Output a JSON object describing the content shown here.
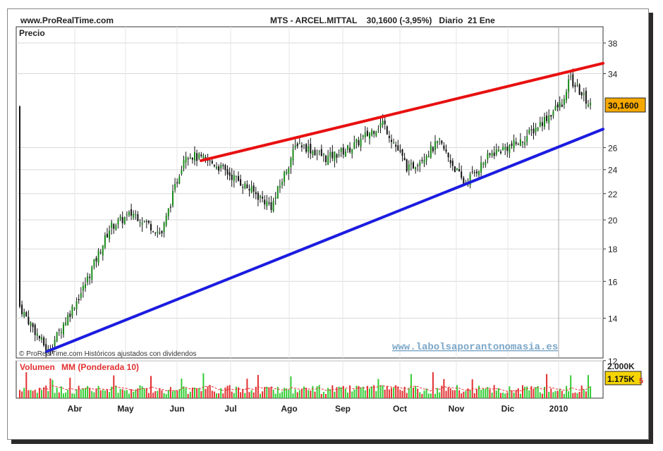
{
  "header": {
    "site": "www.ProRealTime.com",
    "ticker": "MTS - ARCEL.MITTAL",
    "price_change": "30,1600 (-3,95%)",
    "period": "Diario",
    "date": "21 Ene"
  },
  "price_panel": {
    "label": "Precio",
    "last_price": "30,1600",
    "credit": "© ProRealTime.com Históricos ajustados con dividendos",
    "watermark": "www.labolsaporantonomasia.es"
  },
  "volume_panel": {
    "label_volume": "Volumen",
    "label_ma": "MM (Ponderada 10)",
    "tick_top": "2.000K",
    "last_value": "1.175K",
    "last_value_suffix": "5"
  },
  "colors": {
    "up_candle": "#1a8a1a",
    "down_candle": "#111111",
    "resistance_line": "#e81010",
    "support_line": "#1c1ce0",
    "volume_up": "#33cc33",
    "volume_down": "#e23030",
    "price_badge": "#f5a800"
  },
  "chart_data": {
    "type": "candlestick",
    "y_scale": "log",
    "ylim": [
      12,
      40
    ],
    "y_ticks": [
      12,
      14,
      16,
      18,
      20,
      22,
      24,
      26,
      34,
      38
    ],
    "y_tick_labels": [
      "12",
      "14",
      "16",
      "18",
      "20",
      "22",
      "24",
      "26",
      "34",
      "38"
    ],
    "x_tick_labels": [
      "Abr",
      "May",
      "Jun",
      "Jul",
      "Ago",
      "Sep",
      "Oct",
      "Nov",
      "Dic",
      "2010"
    ],
    "grid": true,
    "approx_close_path": [
      {
        "month": "Mar",
        "close": 14.6
      },
      {
        "month": "Mar",
        "close": 12.4
      },
      {
        "month": "Abr",
        "close": 15.5
      },
      {
        "month": "Abr",
        "close": 19.5
      },
      {
        "month": "May",
        "close": 20.5
      },
      {
        "month": "May",
        "close": 19.0
      },
      {
        "month": "Jun",
        "close": 25.5
      },
      {
        "month": "Jun",
        "close": 24.5
      },
      {
        "month": "Jul",
        "close": 23.0
      },
      {
        "month": "Jul",
        "close": 21.0
      },
      {
        "month": "Ago",
        "close": 26.5
      },
      {
        "month": "Ago",
        "close": 25.0
      },
      {
        "month": "Sep",
        "close": 26.0
      },
      {
        "month": "Sep",
        "close": 28.5
      },
      {
        "month": "Oct",
        "close": 24.0
      },
      {
        "month": "Oct",
        "close": 26.5
      },
      {
        "month": "Nov",
        "close": 22.8
      },
      {
        "month": "Nov",
        "close": 25.5
      },
      {
        "month": "Dic",
        "close": 26.5
      },
      {
        "month": "Dic",
        "close": 31.0
      },
      {
        "month": "2010",
        "close": 33.6
      },
      {
        "month": "2010",
        "close": 30.16
      }
    ],
    "last_close": 30.16,
    "trendlines": [
      {
        "name": "resistance",
        "from": {
          "month": "Jun",
          "value": 24.8
        },
        "to": {
          "month": "2010",
          "value": 35.3
        }
      },
      {
        "name": "support",
        "from": {
          "month": "Mar",
          "value": 12.4
        },
        "to": {
          "month": "2010",
          "value": 27.8
        }
      }
    ],
    "volume": {
      "ylim": [
        0,
        2000
      ],
      "unit": "K",
      "last_value": 1175,
      "ma_type": "weighted",
      "ma_period": 10
    }
  }
}
